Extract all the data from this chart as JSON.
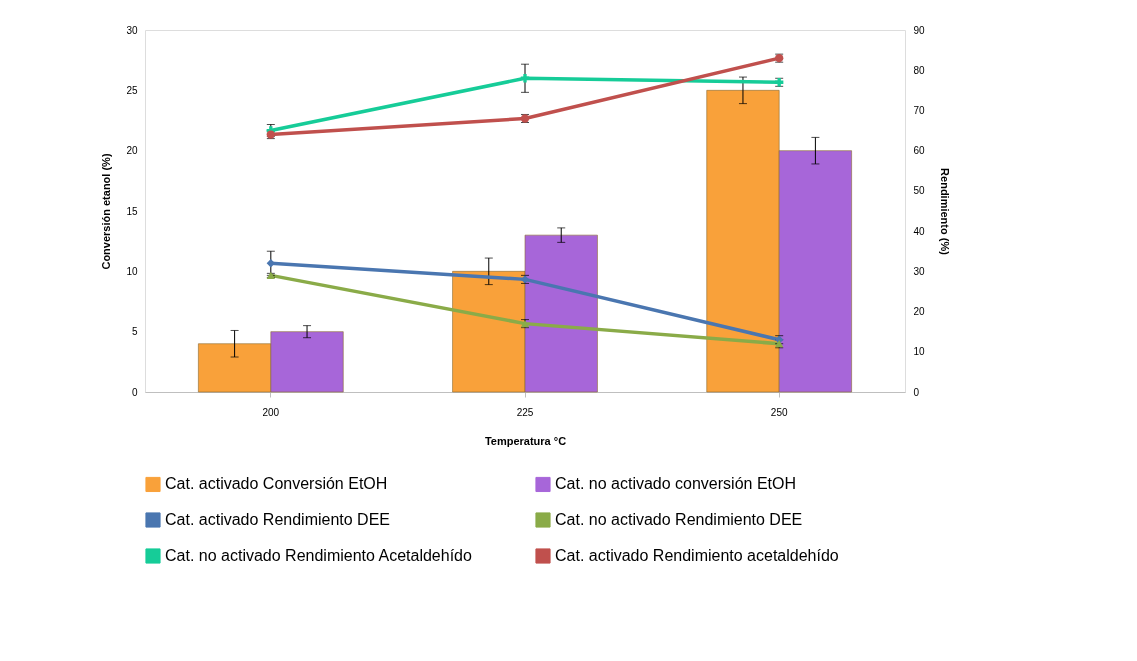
{
  "chart_data": {
    "type": "bar",
    "xlabel": "Temperatura °C",
    "ylabel": "Conversión  etanol (%)",
    "y2label": "Rendimiento (%)",
    "categories": [
      "200",
      "225",
      "250"
    ],
    "ylim": [
      0,
      30
    ],
    "yticks": [
      0,
      5,
      10,
      15,
      20,
      25,
      30
    ],
    "y2lim": [
      0,
      90
    ],
    "y2ticks": [
      0,
      10,
      20,
      30,
      40,
      50,
      60,
      70,
      80,
      90
    ],
    "grid": false,
    "legend": "bottom",
    "series": [
      {
        "name": "Cat. activado Conversión EtOH",
        "color": "#f9a13a",
        "values": [
          4,
          10,
          25
        ],
        "errors": [
          1.1,
          1.1,
          1.1
        ]
      },
      {
        "name": "Cat. no activado conversión EtOH",
        "color": "#a766d9",
        "values": [
          5,
          13,
          20
        ],
        "errors": [
          0.5,
          0.6,
          1.1
        ]
      },
      {
        "name": "Cat. activado Rendimiento DEE",
        "type": "line",
        "axis": "y2",
        "marker": "diamond",
        "color": "#4a76b0",
        "values": [
          32,
          28,
          13
        ],
        "errors": [
          3,
          1,
          1
        ]
      },
      {
        "name": "Cat. no activado Rendimiento DEE",
        "type": "line",
        "axis": "y2",
        "marker": "triangle",
        "color": "#8aab48",
        "values": [
          29,
          17,
          12
        ],
        "errors": [
          0.5,
          1,
          1
        ]
      },
      {
        "name": "Cat. no activado Rendimiento Acetaldehído",
        "type": "line",
        "axis": "y2",
        "marker": "cross",
        "color": "#16cc98",
        "values": [
          65,
          78,
          77
        ],
        "errors": [
          1.5,
          3.5,
          1
        ]
      },
      {
        "name": "Cat. activado Rendimiento acetaldehído",
        "type": "line",
        "axis": "y2",
        "marker": "circle",
        "color": "#c0504d",
        "values": [
          64,
          68,
          83
        ],
        "errors": [
          1,
          1,
          1
        ]
      }
    ]
  }
}
